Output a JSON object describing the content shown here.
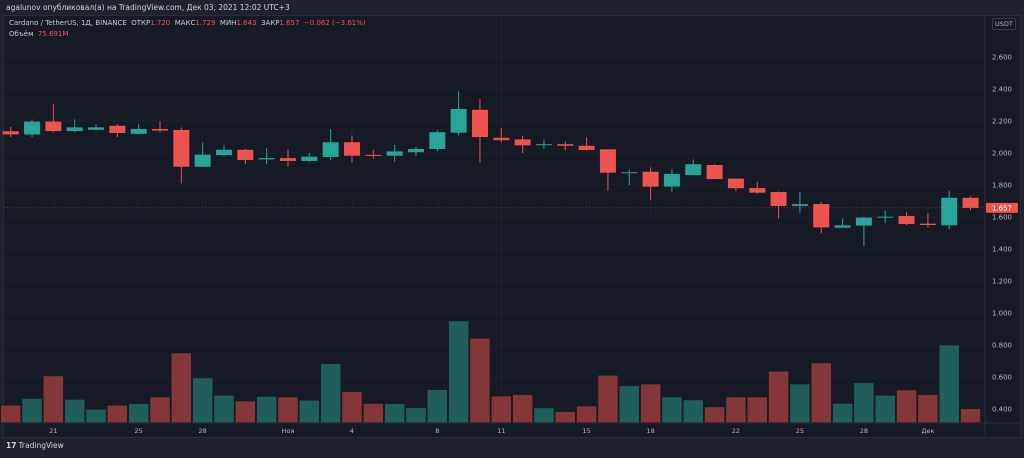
{
  "header": {
    "published": "agalunov опубликовал(а) на TradingView.com, Дек 03, 2021 12:02 UTC+3"
  },
  "legend": {
    "symbol": "Cardano / TetherUS, 1Д, BINANCE",
    "open_label": "ОТКР",
    "open": "1.720",
    "high_label": "МАКС",
    "high": "1.729",
    "low_label": "МИН",
    "low": "1.643",
    "close_label": "ЗАКР",
    "close": "1.657",
    "change": "−0.062 (−3.61%)",
    "volume_label": "Объём",
    "volume": "75.691M"
  },
  "currency": "USDT",
  "last_price_label": "1.657",
  "footer": {
    "logo": "17",
    "brand": "TradingView"
  },
  "colors": {
    "up": "#26a69a",
    "down": "#ef5350",
    "vol_up": "#1f5e5b",
    "vol_down": "#843638",
    "background": "#161a25",
    "grid": "#222633"
  },
  "chart_data": {
    "type": "candlestick",
    "price_axis": {
      "ticks": [
        "2.600",
        "2.400",
        "2.200",
        "2.000",
        "1.800",
        "1.600",
        "1.400",
        "1.200",
        "1.000",
        "0.800",
        "0.600",
        "0.400"
      ],
      "range": [
        0.3,
        2.9
      ]
    },
    "time_axis": {
      "ticks": [
        {
          "label": "21",
          "date": "2021-10-21"
        },
        {
          "label": "25",
          "date": "2021-10-25"
        },
        {
          "label": "28",
          "date": "2021-10-28"
        },
        {
          "label": "Ноя",
          "date": "2021-11-01"
        },
        {
          "label": "4",
          "date": "2021-11-04"
        },
        {
          "label": "8",
          "date": "2021-11-08"
        },
        {
          "label": "11",
          "date": "2021-11-11"
        },
        {
          "label": "15",
          "date": "2021-11-15"
        },
        {
          "label": "18",
          "date": "2021-11-18"
        },
        {
          "label": "22",
          "date": "2021-11-22"
        },
        {
          "label": "25",
          "date": "2021-11-25"
        },
        {
          "label": "28",
          "date": "2021-11-28"
        },
        {
          "label": "Дек",
          "date": "2021-12-01"
        }
      ]
    },
    "volume_unit": "M",
    "columns": [
      "date",
      "open",
      "high",
      "low",
      "close",
      "volume"
    ],
    "candles": [
      [
        "2021-10-19",
        2.136,
        2.162,
        2.1,
        2.116,
        94
      ],
      [
        "2021-10-20",
        2.116,
        2.21,
        2.1,
        2.196,
        131
      ],
      [
        "2021-10-21",
        2.196,
        2.306,
        2.13,
        2.137,
        253
      ],
      [
        "2021-10-22",
        2.137,
        2.21,
        2.13,
        2.16,
        126
      ],
      [
        "2021-10-23",
        2.145,
        2.18,
        2.14,
        2.16,
        72
      ],
      [
        "2021-10-24",
        2.17,
        2.18,
        2.1,
        2.125,
        94
      ],
      [
        "2021-10-25",
        2.12,
        2.18,
        2.12,
        2.15,
        103
      ],
      [
        "2021-10-26",
        2.15,
        2.2,
        2.13,
        2.14,
        139
      ],
      [
        "2021-10-27",
        2.144,
        2.16,
        1.81,
        1.914,
        377
      ],
      [
        "2021-10-28",
        1.914,
        2.065,
        1.914,
        1.99,
        242
      ],
      [
        "2021-10-29",
        1.987,
        2.05,
        1.98,
        2.02,
        148
      ],
      [
        "2021-10-30",
        2.02,
        2.025,
        1.93,
        1.956,
        117
      ],
      [
        "2021-10-31",
        1.96,
        2.03,
        1.93,
        1.968,
        142
      ],
      [
        "2021-11-01",
        1.968,
        2.02,
        1.915,
        1.95,
        139
      ],
      [
        "2021-11-02",
        1.95,
        2.0,
        1.945,
        1.977,
        121
      ],
      [
        "2021-11-03",
        1.975,
        2.15,
        1.956,
        2.067,
        319
      ],
      [
        "2021-11-04",
        2.067,
        2.11,
        1.94,
        1.983,
        168
      ],
      [
        "2021-11-05",
        1.988,
        2.02,
        1.965,
        1.983,
        104
      ],
      [
        "2021-11-06",
        1.983,
        2.05,
        1.945,
        2.01,
        103
      ],
      [
        "2021-11-07",
        2.005,
        2.04,
        1.98,
        2.025,
        81
      ],
      [
        "2021-11-08",
        2.025,
        2.14,
        2.01,
        2.13,
        179
      ],
      [
        "2021-11-09",
        2.127,
        2.386,
        2.11,
        2.275,
        550
      ],
      [
        "2021-11-10",
        2.27,
        2.337,
        1.94,
        2.1,
        456
      ],
      [
        "2021-11-11",
        2.095,
        2.156,
        2.065,
        2.08,
        144
      ],
      [
        "2021-11-12",
        2.085,
        2.106,
        2.0,
        2.048,
        151
      ],
      [
        "2021-11-13",
        2.052,
        2.085,
        2.027,
        2.055,
        80
      ],
      [
        "2021-11-14",
        2.055,
        2.073,
        2.015,
        2.045,
        60
      ],
      [
        "2021-11-15",
        2.045,
        2.098,
        2.015,
        2.019,
        90
      ],
      [
        "2021-11-16",
        2.023,
        2.023,
        1.764,
        1.877,
        256
      ],
      [
        "2021-11-17",
        1.877,
        1.898,
        1.8,
        1.88,
        199
      ],
      [
        "2021-11-18",
        1.883,
        1.91,
        1.706,
        1.79,
        209
      ],
      [
        "2021-11-19",
        1.79,
        1.9,
        1.758,
        1.869,
        139
      ],
      [
        "2021-11-20",
        1.862,
        1.96,
        1.862,
        1.93,
        123
      ],
      [
        "2021-11-21",
        1.925,
        1.93,
        1.837,
        1.837,
        85
      ],
      [
        "2021-11-22",
        1.84,
        1.84,
        1.762,
        1.78,
        139
      ],
      [
        "2021-11-23",
        1.781,
        1.82,
        1.744,
        1.752,
        139
      ],
      [
        "2021-11-24",
        1.756,
        1.76,
        1.59,
        1.669,
        278
      ],
      [
        "2021-11-25",
        1.669,
        1.756,
        1.627,
        1.68,
        209
      ],
      [
        "2021-11-26",
        1.681,
        1.694,
        1.498,
        1.535,
        323
      ],
      [
        "2021-11-27",
        1.533,
        1.59,
        1.533,
        1.548,
        104
      ],
      [
        "2021-11-28",
        1.546,
        1.6,
        1.419,
        1.596,
        216
      ],
      [
        "2021-11-29",
        1.598,
        1.64,
        1.565,
        1.602,
        148
      ],
      [
        "2021-11-30",
        1.606,
        1.63,
        1.55,
        1.556,
        177
      ],
      [
        "2021-12-01",
        1.558,
        1.625,
        1.535,
        1.55,
        151
      ],
      [
        "2021-12-02",
        1.548,
        1.764,
        1.523,
        1.72,
        420
      ],
      [
        "2021-12-03",
        1.72,
        1.729,
        1.643,
        1.657,
        75.691
      ]
    ],
    "last_price": 1.657
  }
}
